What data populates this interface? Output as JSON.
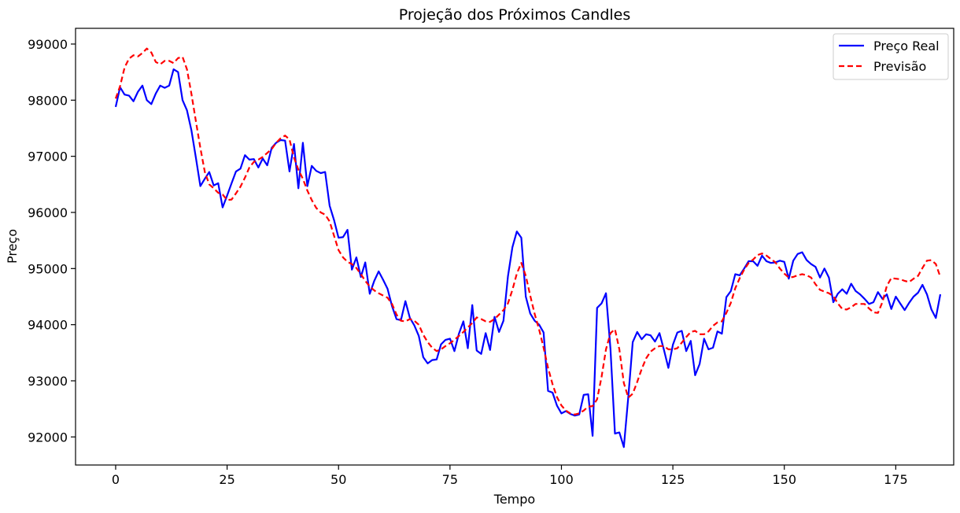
{
  "chart_data": {
    "type": "line",
    "title": "Projeção dos Próximos Candles",
    "xlabel": "Tempo",
    "ylabel": "Preço",
    "xlim": [
      -9,
      188
    ],
    "ylim": [
      91500,
      99280
    ],
    "xticks": [
      0,
      25,
      50,
      75,
      100,
      125,
      150,
      175
    ],
    "yticks": [
      92000,
      93000,
      94000,
      95000,
      96000,
      97000,
      98000,
      99000
    ],
    "grid": false,
    "legend_position": "top-right",
    "series": [
      {
        "name": "Preço Real",
        "color": "#0000ff",
        "style": "solid",
        "x": [
          0,
          1,
          2,
          3,
          4,
          5,
          6,
          7,
          8,
          9,
          10,
          11,
          12,
          13,
          14,
          15,
          16,
          17,
          18,
          19,
          20,
          21,
          22,
          23,
          24,
          25,
          26,
          27,
          28,
          29,
          30,
          31,
          32,
          33,
          34,
          35,
          36,
          37,
          38,
          39,
          40,
          41,
          42,
          43,
          44,
          45,
          46,
          47,
          48,
          49,
          50,
          51,
          52,
          53,
          54,
          55,
          56,
          57,
          58,
          59,
          60,
          61,
          62,
          63,
          64,
          65,
          66,
          67,
          68,
          69,
          70,
          71,
          72,
          73,
          74,
          75,
          76,
          77,
          78,
          79,
          80,
          81,
          82,
          83,
          84,
          85,
          86,
          87,
          88,
          89,
          90,
          91,
          92,
          93,
          94,
          95,
          96,
          97,
          98,
          99,
          100,
          101,
          102,
          103,
          104,
          105,
          106,
          107,
          108,
          109,
          110,
          111,
          112,
          113,
          114,
          115,
          116,
          117,
          118,
          119,
          120,
          121,
          122,
          123,
          124,
          125,
          126,
          127,
          128,
          129,
          130,
          131,
          132,
          133,
          134,
          135,
          136,
          137,
          138,
          139,
          140,
          141,
          142,
          143,
          144,
          145,
          146,
          147,
          148,
          149,
          150,
          151,
          152,
          153,
          154,
          155,
          156,
          157,
          158,
          159,
          160,
          161,
          162,
          163,
          164,
          165,
          166,
          167,
          168,
          169,
          170,
          171,
          172,
          173,
          174,
          175,
          176,
          177,
          178,
          179,
          180,
          181,
          182,
          183,
          184,
          185
        ],
        "values": [
          97880,
          98230,
          98100,
          98080,
          97980,
          98150,
          98260,
          98000,
          97930,
          98120,
          98260,
          98220,
          98260,
          98550,
          98500,
          98000,
          97820,
          97460,
          96970,
          96470,
          96600,
          96720,
          96480,
          96520,
          96090,
          96300,
          96520,
          96730,
          96780,
          97020,
          96940,
          96950,
          96800,
          96960,
          96840,
          97150,
          97240,
          97290,
          97280,
          96730,
          97220,
          96430,
          97240,
          96470,
          96830,
          96740,
          96700,
          96720,
          96120,
          95860,
          95550,
          95560,
          95690,
          94980,
          95200,
          94850,
          95110,
          94550,
          94780,
          94950,
          94800,
          94640,
          94330,
          94100,
          94080,
          94420,
          94120,
          93990,
          93800,
          93420,
          93310,
          93370,
          93380,
          93650,
          93730,
          93750,
          93530,
          93840,
          94060,
          93580,
          94350,
          93540,
          93480,
          93850,
          93550,
          94140,
          93870,
          94070,
          94860,
          95380,
          95660,
          95550,
          94500,
          94200,
          94070,
          94000,
          93860,
          92820,
          92790,
          92560,
          92420,
          92460,
          92410,
          92380,
          92400,
          92750,
          92760,
          92020,
          94300,
          94380,
          94560,
          93570,
          92060,
          92080,
          91820,
          92720,
          93690,
          93870,
          93740,
          93830,
          93810,
          93700,
          93850,
          93550,
          93230,
          93640,
          93860,
          93890,
          93530,
          93710,
          93100,
          93300,
          93750,
          93560,
          93590,
          93880,
          93840,
          94490,
          94600,
          94900,
          94880,
          95000,
          95130,
          95130,
          95050,
          95230,
          95130,
          95100,
          95110,
          95140,
          95120,
          94820,
          95140,
          95260,
          95290,
          95150,
          95080,
          95030,
          94840,
          95000,
          94840,
          94400,
          94550,
          94630,
          94550,
          94730,
          94600,
          94540,
          94460,
          94370,
          94400,
          94580,
          94460,
          94540,
          94280,
          94500,
          94380,
          94260,
          94390,
          94500,
          94570,
          94710,
          94540,
          94270,
          94120,
          94540
        ]
      },
      {
        "name": "Previsão",
        "color": "#ff0000",
        "style": "dashed",
        "x": [
          0,
          1,
          2,
          3,
          4,
          5,
          6,
          7,
          8,
          9,
          10,
          11,
          12,
          13,
          14,
          15,
          16,
          17,
          18,
          19,
          20,
          21,
          22,
          23,
          24,
          25,
          26,
          27,
          28,
          29,
          30,
          31,
          32,
          33,
          34,
          35,
          36,
          37,
          38,
          39,
          40,
          41,
          42,
          43,
          44,
          45,
          46,
          47,
          48,
          49,
          50,
          51,
          52,
          53,
          54,
          55,
          56,
          57,
          58,
          59,
          60,
          61,
          62,
          63,
          64,
          65,
          66,
          67,
          68,
          69,
          70,
          71,
          72,
          73,
          74,
          75,
          76,
          77,
          78,
          79,
          80,
          81,
          82,
          83,
          84,
          85,
          86,
          87,
          88,
          89,
          90,
          91,
          92,
          93,
          94,
          95,
          96,
          97,
          98,
          99,
          100,
          101,
          102,
          103,
          104,
          105,
          106,
          107,
          108,
          109,
          110,
          111,
          112,
          113,
          114,
          115,
          116,
          117,
          118,
          119,
          120,
          121,
          122,
          123,
          124,
          125,
          126,
          127,
          128,
          129,
          130,
          131,
          132,
          133,
          134,
          135,
          136,
          137,
          138,
          139,
          140,
          141,
          142,
          143,
          144,
          145,
          146,
          147,
          148,
          149,
          150,
          151,
          152,
          153,
          154,
          155,
          156,
          157,
          158,
          159,
          160,
          161,
          162,
          163,
          164,
          165,
          166,
          167,
          168,
          169,
          170,
          171,
          172,
          173,
          174,
          175,
          176,
          177,
          178,
          179,
          180,
          181,
          182,
          183,
          184,
          185
        ],
        "values": [
          98030,
          98250,
          98580,
          98740,
          98800,
          98780,
          98840,
          98920,
          98850,
          98680,
          98640,
          98700,
          98700,
          98660,
          98750,
          98770,
          98550,
          98110,
          97620,
          97150,
          96720,
          96500,
          96430,
          96350,
          96320,
          96220,
          96230,
          96340,
          96460,
          96620,
          96800,
          96900,
          96940,
          96990,
          97060,
          97130,
          97240,
          97320,
          97370,
          97300,
          96980,
          96760,
          96600,
          96390,
          96220,
          96080,
          96000,
          95960,
          95840,
          95580,
          95330,
          95200,
          95120,
          95080,
          95010,
          94900,
          94780,
          94680,
          94610,
          94560,
          94520,
          94480,
          94370,
          94180,
          94070,
          94060,
          94100,
          94070,
          94000,
          93820,
          93690,
          93590,
          93530,
          93560,
          93620,
          93670,
          93730,
          93800,
          93870,
          93950,
          94030,
          94130,
          94100,
          94060,
          94050,
          94100,
          94180,
          94260,
          94380,
          94620,
          94910,
          95100,
          94870,
          94520,
          94190,
          93910,
          93590,
          93230,
          92940,
          92710,
          92560,
          92470,
          92420,
          92400,
          92420,
          92470,
          92540,
          92550,
          92670,
          93070,
          93560,
          93850,
          93920,
          93560,
          92960,
          92700,
          92770,
          92980,
          93210,
          93400,
          93520,
          93580,
          93620,
          93620,
          93560,
          93560,
          93580,
          93680,
          93780,
          93870,
          93890,
          93830,
          93830,
          93880,
          93980,
          94040,
          94060,
          94210,
          94390,
          94650,
          94830,
          94980,
          95100,
          95160,
          95240,
          95270,
          95230,
          95170,
          95110,
          95000,
          94910,
          94840,
          94850,
          94880,
          94900,
          94880,
          94840,
          94720,
          94620,
          94590,
          94560,
          94510,
          94380,
          94280,
          94270,
          94310,
          94370,
          94370,
          94370,
          94290,
          94220,
          94210,
          94400,
          94690,
          94830,
          94820,
          94810,
          94780,
          94760,
          94820,
          94870,
          95010,
          95140,
          95150,
          95080,
          94850
        ]
      }
    ]
  }
}
